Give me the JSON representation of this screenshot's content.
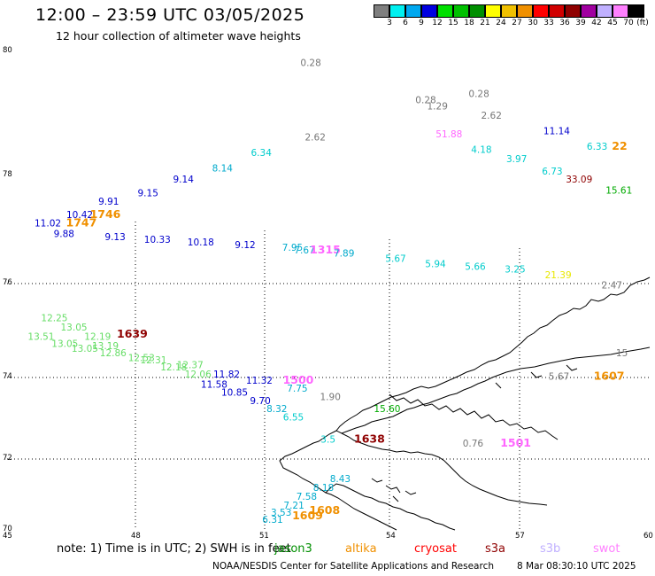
{
  "header": {
    "title": "12:00 – 23:59 UTC 03/05/2025",
    "subtitle": "12 hour collection of altimeter wave heights"
  },
  "legend": {
    "unit": "(ft)",
    "items": [
      {
        "label": "3",
        "color": "#7f7f7f"
      },
      {
        "label": "6",
        "color": "#00f0f0"
      },
      {
        "label": "9",
        "color": "#00a8f0"
      },
      {
        "label": "12",
        "color": "#0000e0"
      },
      {
        "label": "15",
        "color": "#00e000"
      },
      {
        "label": "18",
        "color": "#00c000"
      },
      {
        "label": "21",
        "color": "#008f00"
      },
      {
        "label": "24",
        "color": "#ffff00"
      },
      {
        "label": "27",
        "color": "#f0c000"
      },
      {
        "label": "30",
        "color": "#f09000"
      },
      {
        "label": "33",
        "color": "#ff0000"
      },
      {
        "label": "36",
        "color": "#d00000"
      },
      {
        "label": "39",
        "color": "#8f0000"
      },
      {
        "label": "42",
        "color": "#a000a0"
      },
      {
        "label": "45",
        "color": "#c0b0ff"
      },
      {
        "label": "70",
        "color": "#ff80ff"
      },
      {
        "label": "",
        "color": "#000000"
      }
    ]
  },
  "axes": {
    "lat_labels": [
      "80",
      "78",
      "76",
      "74",
      "72",
      "70"
    ],
    "lon_labels": [
      "45",
      "48",
      "51",
      "54",
      "57",
      "60"
    ]
  },
  "observations": [
    {
      "text": "0.28",
      "color": "#777777",
      "lon": 51.8,
      "lat": 79.75
    },
    {
      "text": "0.28",
      "color": "#777777",
      "lon": 54.8,
      "lat": 79.15
    },
    {
      "text": "1.29",
      "color": "#777777",
      "lon": 55.1,
      "lat": 79.05
    },
    {
      "text": "0.28",
      "color": "#777777",
      "lon": 56.2,
      "lat": 79.25
    },
    {
      "text": "2.62",
      "color": "#777777",
      "lon": 56.5,
      "lat": 78.9
    },
    {
      "text": "2.62",
      "color": "#777777",
      "lon": 51.9,
      "lat": 78.55
    },
    {
      "text": "51.88",
      "color": "#ff66ff",
      "lon": 55.3,
      "lat": 78.6
    },
    {
      "text": "4.18",
      "color": "#00cccc",
      "lon": 56.2,
      "lat": 78.35
    },
    {
      "text": "3.97",
      "color": "#00cccc",
      "lon": 57.1,
      "lat": 78.2
    },
    {
      "text": "11.14",
      "color": "#0000cc",
      "lon": 58.1,
      "lat": 78.65
    },
    {
      "text": "6.33",
      "color": "#00cccc",
      "lon": 59.2,
      "lat": 78.4
    },
    {
      "text": "22",
      "color": "#f09000",
      "lon": 59.85,
      "lat": 78.4,
      "big": true
    },
    {
      "text": "6.73",
      "color": "#00cccc",
      "lon": 58.0,
      "lat": 78.0
    },
    {
      "text": "33.09",
      "color": "#8f0000",
      "lon": 58.6,
      "lat": 77.85
    },
    {
      "text": "15.61",
      "color": "#00aa00",
      "lon": 59.6,
      "lat": 77.65
    },
    {
      "text": "6.34",
      "color": "#00cccc",
      "lon": 50.5,
      "lat": 78.3
    },
    {
      "text": "8.14",
      "color": "#00aacc",
      "lon": 49.5,
      "lat": 78.05
    },
    {
      "text": "9.14",
      "color": "#0000cc",
      "lon": 48.5,
      "lat": 77.85
    },
    {
      "text": "9.15",
      "color": "#0000cc",
      "lon": 47.6,
      "lat": 77.6
    },
    {
      "text": "9.91",
      "color": "#0000cc",
      "lon": 46.6,
      "lat": 77.45
    },
    {
      "text": "10.42",
      "color": "#0000cc",
      "lon": 45.8,
      "lat": 77.2
    },
    {
      "text": "11.02",
      "color": "#0000cc",
      "lon": 45.0,
      "lat": 77.05
    },
    {
      "text": "1746",
      "color": "#f09000",
      "lon": 46.4,
      "lat": 77.2,
      "big": true
    },
    {
      "text": "1747",
      "color": "#f09000",
      "lon": 45.8,
      "lat": 77.05,
      "big": true
    },
    {
      "text": "9.88",
      "color": "#0000cc",
      "lon": 45.5,
      "lat": 76.85
    },
    {
      "text": "9.13",
      "color": "#0000cc",
      "lon": 46.8,
      "lat": 76.8
    },
    {
      "text": "10.33",
      "color": "#0000cc",
      "lon": 47.8,
      "lat": 76.75
    },
    {
      "text": "10.18",
      "color": "#0000cc",
      "lon": 48.9,
      "lat": 76.7
    },
    {
      "text": "9.12",
      "color": "#0000cc",
      "lon": 50.1,
      "lat": 76.65
    },
    {
      "text": "7.95",
      "color": "#00aacc",
      "lon": 51.3,
      "lat": 76.6
    },
    {
      "text": "7.67",
      "color": "#00aacc",
      "lon": 51.6,
      "lat": 76.55
    },
    {
      "text": "1315",
      "color": "#ff66ff",
      "lon": 52.0,
      "lat": 76.55,
      "big": true
    },
    {
      "text": "7.89",
      "color": "#00aacc",
      "lon": 52.6,
      "lat": 76.5
    },
    {
      "text": "5.67",
      "color": "#00cccc",
      "lon": 53.9,
      "lat": 76.4
    },
    {
      "text": "5.94",
      "color": "#00cccc",
      "lon": 54.9,
      "lat": 76.3
    },
    {
      "text": "5.66",
      "color": "#00cccc",
      "lon": 55.9,
      "lat": 76.25
    },
    {
      "text": "3.25",
      "color": "#00cccc",
      "lon": 56.9,
      "lat": 76.2
    },
    {
      "text": "21.39",
      "color": "#e8e800",
      "lon": 57.9,
      "lat": 76.1
    },
    {
      "text": "2.47",
      "color": "#777777",
      "lon": 59.3,
      "lat": 75.9
    },
    {
      "text": "12.25",
      "color": "#66dd66",
      "lon": 45.3,
      "lat": 75.2
    },
    {
      "text": "13.05",
      "color": "#66dd66",
      "lon": 45.8,
      "lat": 75.0
    },
    {
      "text": "13.51",
      "color": "#66dd66",
      "lon": 45.0,
      "lat": 74.8
    },
    {
      "text": "13.05",
      "color": "#66dd66",
      "lon": 45.6,
      "lat": 74.65
    },
    {
      "text": "12.19",
      "color": "#66dd66",
      "lon": 46.4,
      "lat": 74.8
    },
    {
      "text": "1639",
      "color": "#8f0000",
      "lon": 47.2,
      "lat": 74.85,
      "big": true
    },
    {
      "text": "13.05",
      "color": "#66dd66",
      "lon": 46.1,
      "lat": 74.55
    },
    {
      "text": "13.19",
      "color": "#66dd66",
      "lon": 46.6,
      "lat": 74.6
    },
    {
      "text": "12.86",
      "color": "#66dd66",
      "lon": 46.8,
      "lat": 74.45
    },
    {
      "text": "12.53",
      "color": "#66dd66",
      "lon": 47.5,
      "lat": 74.35
    },
    {
      "text": "12.31",
      "color": "#66dd66",
      "lon": 47.8,
      "lat": 74.3
    },
    {
      "text": "12.18",
      "color": "#66dd66",
      "lon": 48.3,
      "lat": 74.15
    },
    {
      "text": "12.37",
      "color": "#66dd66",
      "lon": 48.7,
      "lat": 74.2
    },
    {
      "text": "12.06",
      "color": "#66dd66",
      "lon": 48.9,
      "lat": 74.0
    },
    {
      "text": "11.82",
      "color": "#0000cc",
      "lon": 49.6,
      "lat": 74.0
    },
    {
      "text": "11.58",
      "color": "#0000cc",
      "lon": 49.3,
      "lat": 73.75
    },
    {
      "text": "11.32",
      "color": "#0000cc",
      "lon": 50.4,
      "lat": 73.85
    },
    {
      "text": "1500",
      "color": "#ff66ff",
      "lon": 51.3,
      "lat": 73.85,
      "big": true
    },
    {
      "text": "10.85",
      "color": "#0000cc",
      "lon": 49.8,
      "lat": 73.55
    },
    {
      "text": "9.70",
      "color": "#0000cc",
      "lon": 50.5,
      "lat": 73.35
    },
    {
      "text": "7.75",
      "color": "#00aacc",
      "lon": 51.4,
      "lat": 73.65
    },
    {
      "text": "1.90",
      "color": "#777777",
      "lon": 52.2,
      "lat": 73.45
    },
    {
      "text": "8.32",
      "color": "#00aacc",
      "lon": 50.9,
      "lat": 73.15
    },
    {
      "text": "6.55",
      "color": "#00cccc",
      "lon": 51.3,
      "lat": 72.95
    },
    {
      "text": "15.60",
      "color": "#00aa00",
      "lon": 53.5,
      "lat": 73.15
    },
    {
      "text": "3.5",
      "color": "#00cccc",
      "lon": 52.2,
      "lat": 72.4
    },
    {
      "text": "1638",
      "color": "#8f0000",
      "lon": 53.0,
      "lat": 72.4,
      "big": true
    },
    {
      "text": "0.76",
      "color": "#777777",
      "lon": 55.6,
      "lat": 72.3
    },
    {
      "text": "1501",
      "color": "#ff66ff",
      "lon": 56.5,
      "lat": 72.3,
      "big": true
    },
    {
      "text": "8.43",
      "color": "#00aacc",
      "lon": 52.4,
      "lat": 71.35
    },
    {
      "text": "8.18",
      "color": "#00aacc",
      "lon": 52.0,
      "lat": 71.1
    },
    {
      "text": "7.58",
      "color": "#00aacc",
      "lon": 51.6,
      "lat": 70.85
    },
    {
      "text": "7.21",
      "color": "#00aacc",
      "lon": 51.3,
      "lat": 70.6
    },
    {
      "text": "1608",
      "color": "#f09000",
      "lon": 51.9,
      "lat": 70.45,
      "big": true
    },
    {
      "text": "3.53",
      "color": "#00aacc",
      "lon": 51.0,
      "lat": 70.4
    },
    {
      "text": "1609",
      "color": "#f09000",
      "lon": 51.5,
      "lat": 70.3,
      "big": true
    },
    {
      "text": "6.31",
      "color": "#00aacc",
      "lon": 50.8,
      "lat": 70.2
    },
    {
      "text": "1607",
      "color": "#f09000",
      "lon": 58.9,
      "lat": 73.95,
      "big": true
    },
    {
      "text": "5.67",
      "color": "#777777",
      "lon": 57.8,
      "lat": 73.95
    },
    {
      "text": "15",
      "color": "#777777",
      "lon": 59.5,
      "lat": 74.45
    }
  ],
  "footer": {
    "note": [
      {
        "text": "note:  1) Time is in UTC; 2) SWH is in feet",
        "color": "#000000"
      },
      {
        "text": "jason3",
        "color": "#008f00"
      },
      {
        "text": "altika",
        "color": "#f09000"
      },
      {
        "text": "cryosat",
        "color": "#ff0000"
      },
      {
        "text": "s3a",
        "color": "#8f0000"
      },
      {
        "text": "s3b",
        "color": "#c0b0ff"
      },
      {
        "text": "swot",
        "color": "#ff80ff"
      }
    ],
    "credit": "NOAA/NESDIS Center for Satellite Applications and Research",
    "timestamp": "8 Mar 08:30:10 UTC 2025"
  }
}
